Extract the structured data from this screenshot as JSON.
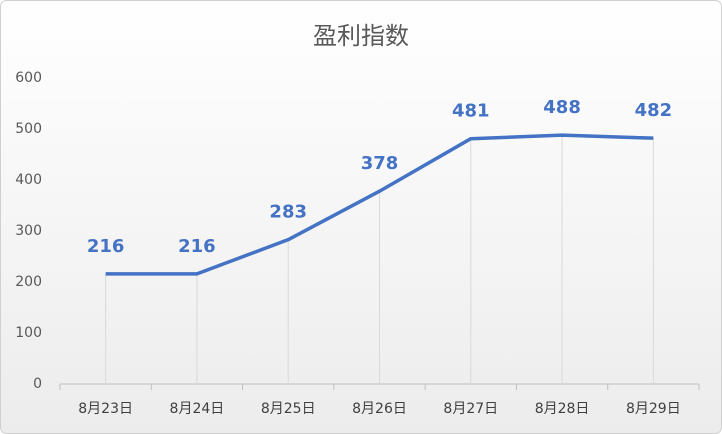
{
  "chart_data": {
    "type": "line",
    "title": "盈利指数",
    "categories": [
      "8月23日",
      "8月24日",
      "8月25日",
      "8月26日",
      "8月27日",
      "8月28日",
      "8月29日"
    ],
    "values": [
      216,
      216,
      283,
      378,
      481,
      488,
      482
    ],
    "color": "#4472c4",
    "ylim": [
      0,
      600
    ],
    "yticks": [
      0,
      100,
      200,
      300,
      400,
      500,
      600
    ],
    "drop_lines": true
  }
}
